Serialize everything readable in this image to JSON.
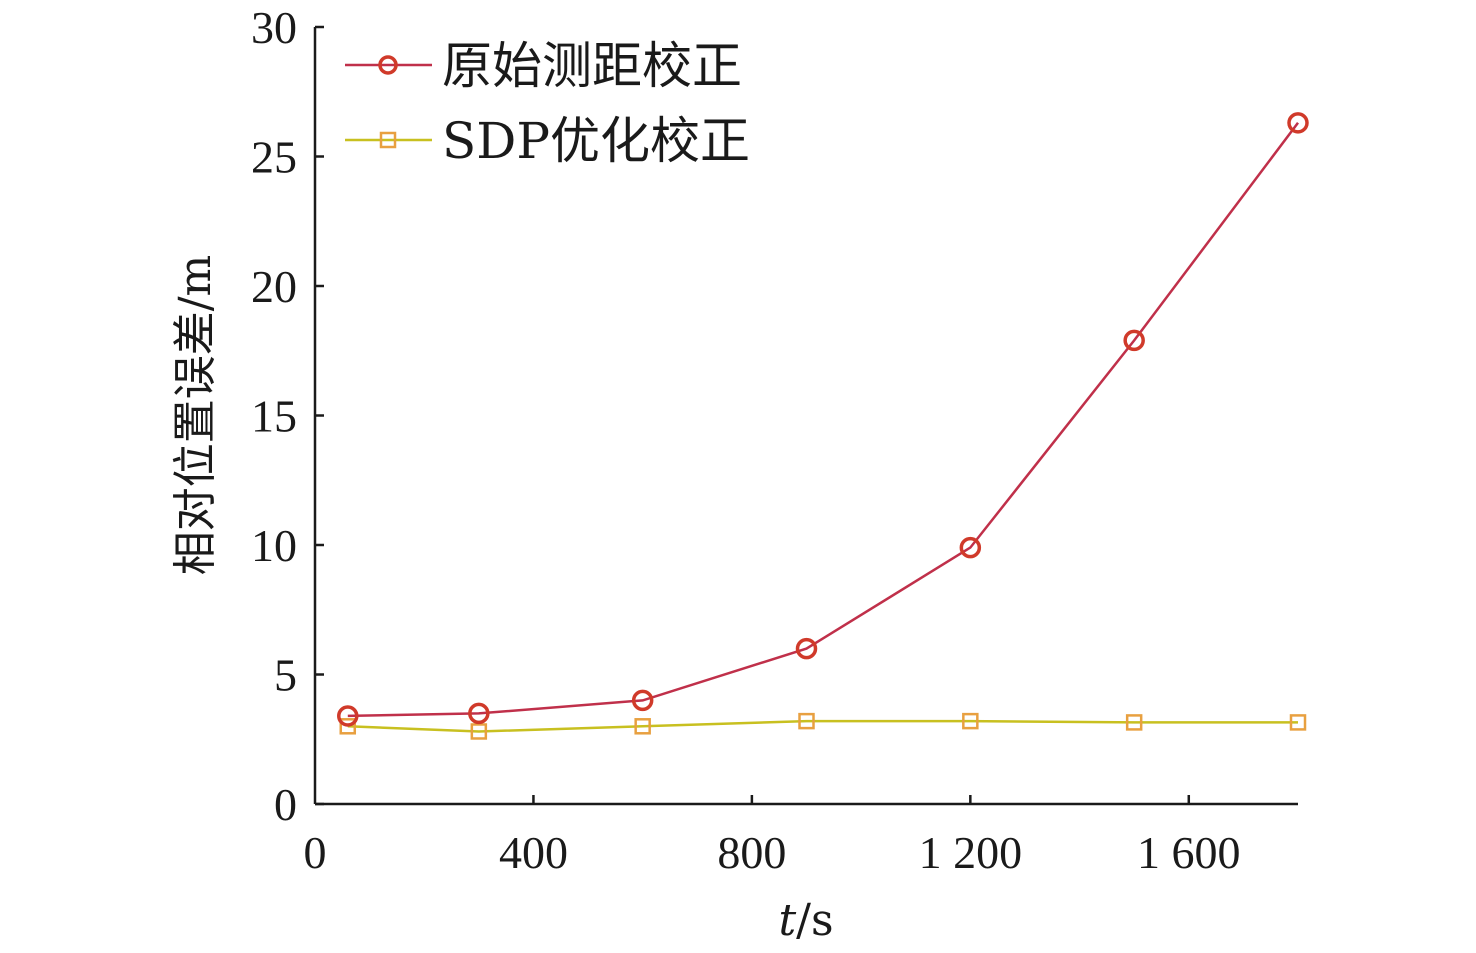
{
  "chart_data": {
    "type": "line",
    "title": "",
    "xlabel_italic": "t",
    "xlabel_rest": "/s",
    "ylabel": "相对位置误差/m",
    "xlim": [
      0,
      1800
    ],
    "ylim": [
      0,
      30
    ],
    "x_ticks": [
      0,
      400,
      800,
      1200,
      1600
    ],
    "x_tick_labels": [
      "0",
      "400",
      "800",
      "1 200",
      "1 600"
    ],
    "y_ticks": [
      0,
      5,
      10,
      15,
      20,
      25,
      30
    ],
    "y_tick_labels": [
      "0",
      "5",
      "10",
      "15",
      "20",
      "25",
      "30"
    ],
    "grid": false,
    "legend_position": "top-left",
    "x": [
      60,
      300,
      600,
      900,
      1200,
      1500,
      1800
    ],
    "series": [
      {
        "name": "原始测距校正",
        "marker": "circle",
        "line_color": "#c0304a",
        "marker_color": "#d03a2a",
        "values": [
          3.4,
          3.5,
          4.0,
          6.0,
          9.9,
          17.9,
          26.3
        ]
      },
      {
        "name": "SDP优化校正",
        "marker": "square",
        "line_color": "#c8c020",
        "marker_color": "#e8a040",
        "values": [
          3.0,
          2.8,
          3.0,
          3.2,
          3.2,
          3.15,
          3.15
        ]
      }
    ]
  }
}
